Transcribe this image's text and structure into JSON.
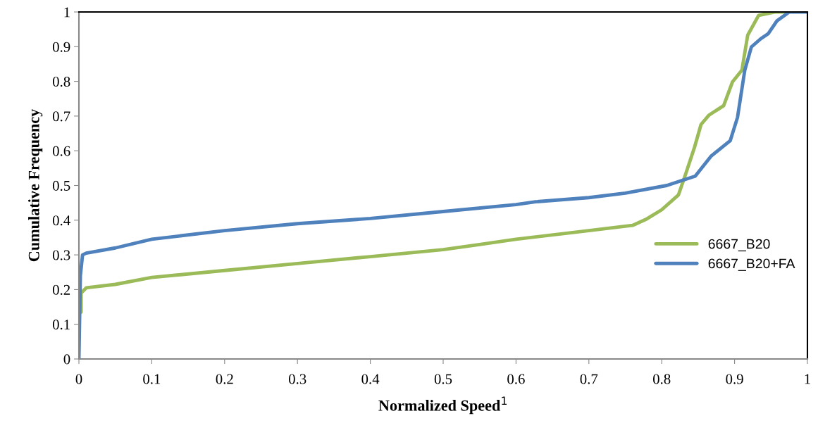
{
  "chart_data": {
    "type": "line",
    "xlabel": "Normalized Speed$^{1}$",
    "ylabel": "Cumulative Frequency",
    "xlim": [
      0,
      1
    ],
    "ylim": [
      0,
      1
    ],
    "xticks": [
      0,
      0.1,
      0.2,
      0.3,
      0.4,
      0.5,
      0.6,
      0.7,
      0.8,
      0.9,
      1
    ],
    "yticks": [
      0,
      0.1,
      0.2,
      0.3,
      0.4,
      0.5,
      0.6,
      0.7,
      0.8,
      0.9,
      1
    ],
    "grid": false,
    "legend": "right",
    "marker": "none",
    "line_style": "solid",
    "series": [
      {
        "name": "6667_B20",
        "color": "#9bbb59",
        "x": [
          0.003,
          0.003,
          0.01,
          0.05,
          0.1,
          0.2,
          0.3,
          0.4,
          0.5,
          0.55,
          0.6,
          0.7,
          0.76,
          0.778,
          0.8,
          0.823,
          0.833,
          0.845,
          0.854,
          0.865,
          0.885,
          0.897,
          0.91,
          0.918,
          0.933,
          0.955,
          0.97
        ],
        "values": [
          0.135,
          0.19,
          0.205,
          0.215,
          0.235,
          0.255,
          0.275,
          0.295,
          0.315,
          0.33,
          0.345,
          0.37,
          0.385,
          0.402,
          0.43,
          0.473,
          0.534,
          0.61,
          0.676,
          0.703,
          0.73,
          0.798,
          0.832,
          0.933,
          0.99,
          1.0,
          1.0
        ]
      },
      {
        "name": "6667_B20+FA",
        "color": "#4f81bd",
        "x": [
          0.0,
          0.002,
          0.005,
          0.01,
          0.05,
          0.1,
          0.2,
          0.3,
          0.4,
          0.5,
          0.6,
          0.627,
          0.7,
          0.75,
          0.807,
          0.846,
          0.868,
          0.894,
          0.904,
          0.914,
          0.923,
          0.936,
          0.946,
          0.958,
          0.975,
          1.0
        ],
        "values": [
          0.0,
          0.24,
          0.3,
          0.305,
          0.32,
          0.345,
          0.37,
          0.39,
          0.405,
          0.425,
          0.445,
          0.453,
          0.465,
          0.478,
          0.5,
          0.527,
          0.585,
          0.629,
          0.696,
          0.832,
          0.899,
          0.923,
          0.937,
          0.974,
          1.0,
          1.0
        ]
      }
    ]
  }
}
